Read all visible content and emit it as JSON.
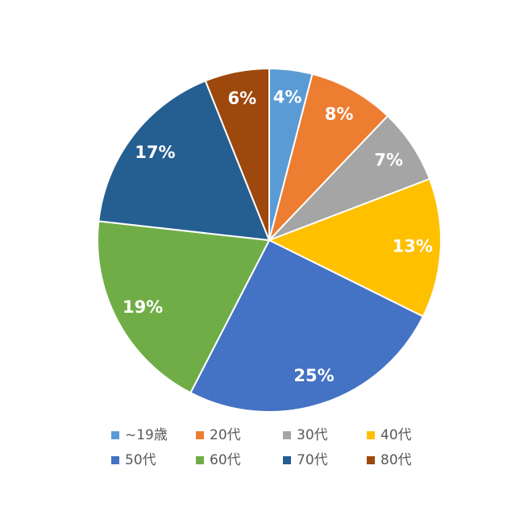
{
  "chart_data": {
    "type": "pie",
    "categories": [
      "~19歳",
      "20代",
      "30代",
      "40代",
      "50代",
      "60代",
      "70代",
      "80代"
    ],
    "values": [
      4,
      8,
      7,
      13,
      25,
      19,
      17,
      6
    ],
    "value_labels": [
      "4%",
      "8%",
      "7%",
      "13%",
      "25%",
      "19%",
      "17%",
      "6%"
    ],
    "colors": [
      "#5b9bd5",
      "#ed7d31",
      "#a5a5a5",
      "#ffc000",
      "#4472c4",
      "#70ad47",
      "#255e91",
      "#9e480e"
    ],
    "legend": "bottom"
  }
}
